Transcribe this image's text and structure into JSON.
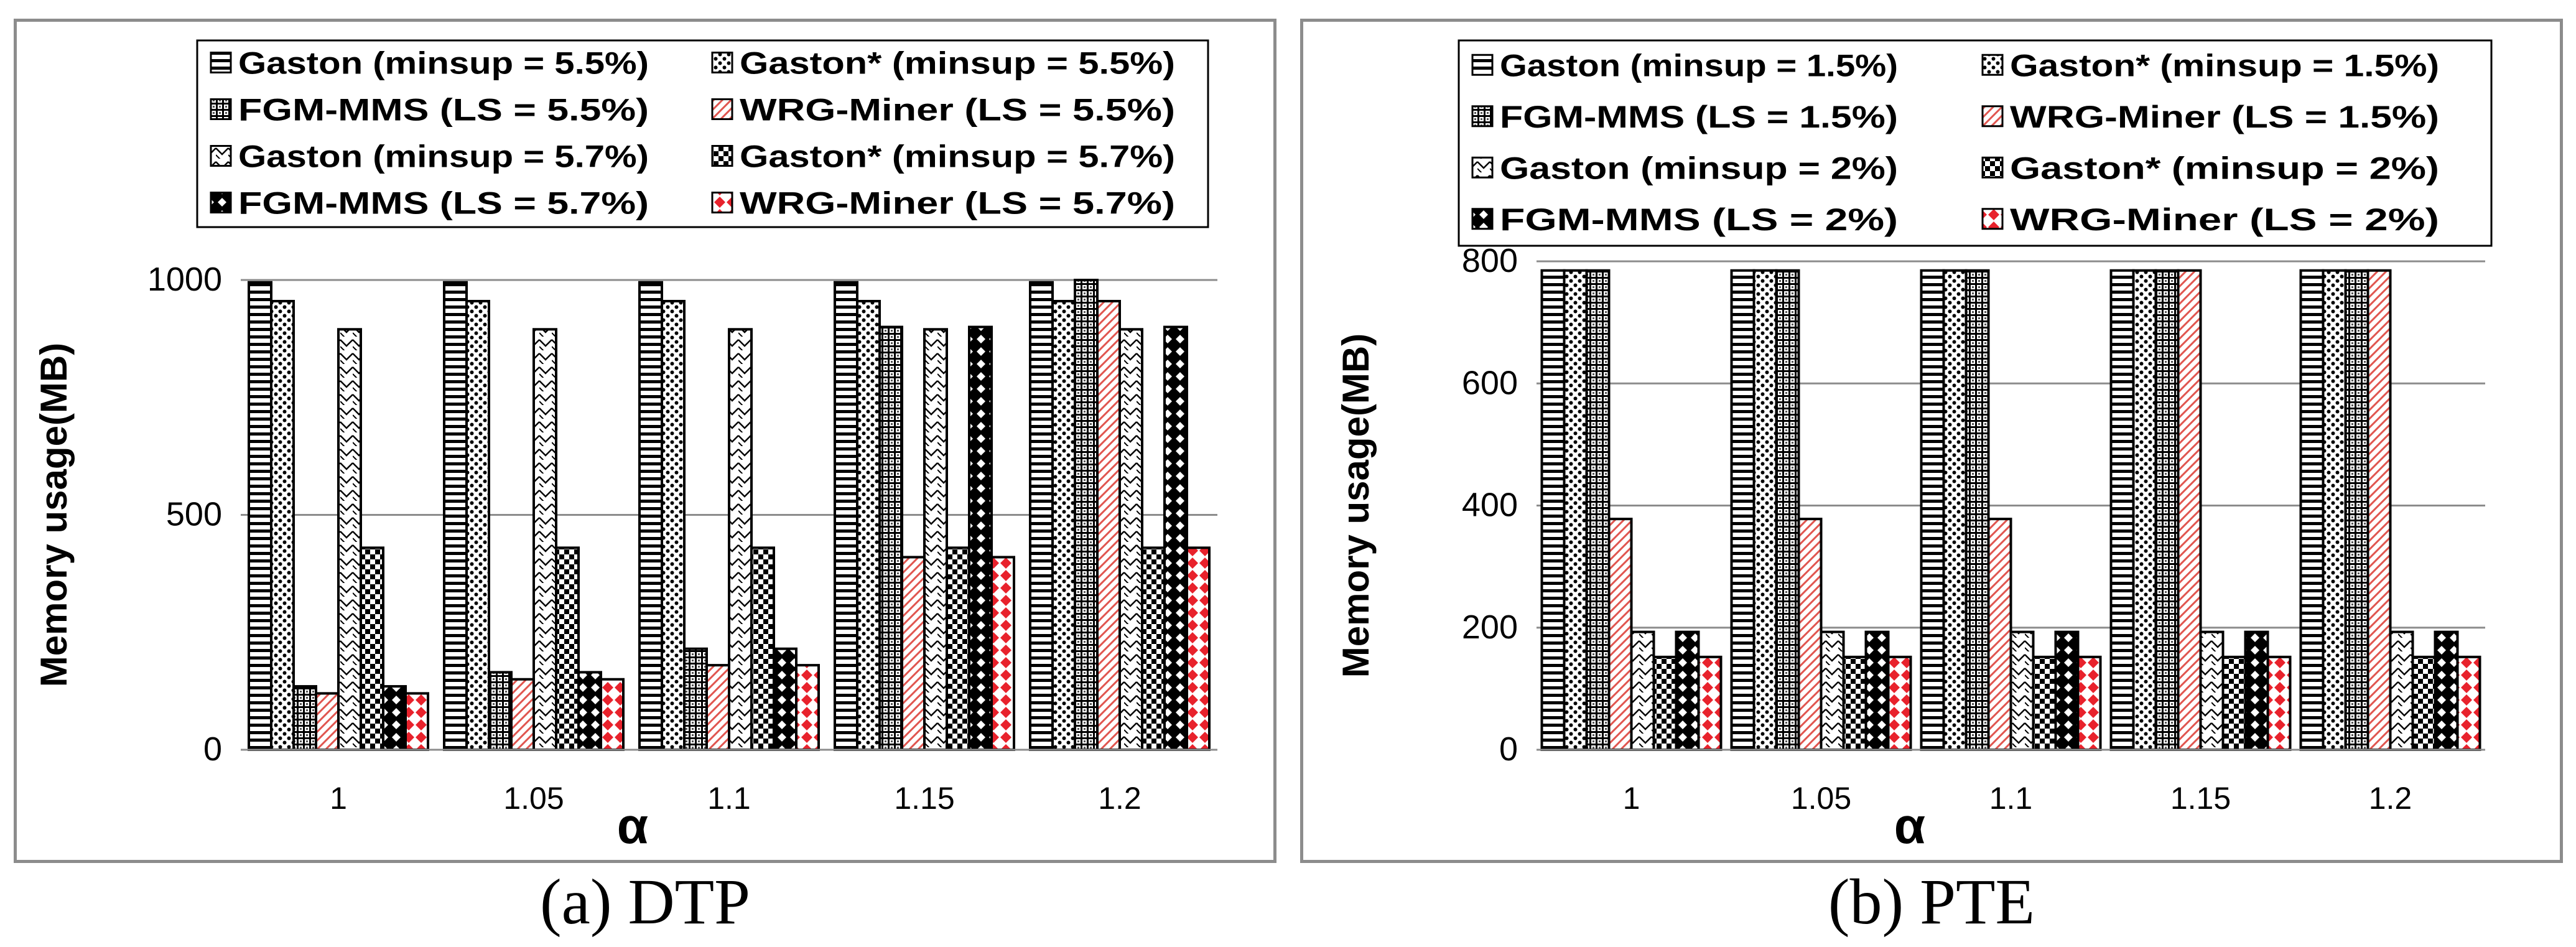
{
  "chart_data": [
    {
      "id": "a",
      "type": "bar",
      "caption": "(a) DTP",
      "xlabel": "α",
      "ylabel": "Memory usage(MB)",
      "ylim": [
        0,
        1000
      ],
      "yticks": [
        "0",
        "500",
        "1000"
      ],
      "grid": true,
      "legend_position": "top",
      "categories": [
        "1",
        "1.05",
        "1.1",
        "1.15",
        "1.2"
      ],
      "series": [
        {
          "name": "Gaston (minsup = 5.5%)",
          "pattern": "hstripe",
          "values": [
            995,
            995,
            995,
            995,
            995
          ]
        },
        {
          "name": "Gaston* (minsup = 5.5%)",
          "pattern": "dots",
          "values": [
            955,
            955,
            955,
            955,
            955
          ]
        },
        {
          "name": "FGM-MMS (LS = 5.5%)",
          "pattern": "grid",
          "values": [
            135,
            165,
            215,
            900,
            1000
          ]
        },
        {
          "name": "WRG-Miner (LS = 5.5%)",
          "pattern": "redhatch",
          "values": [
            120,
            150,
            180,
            410,
            955
          ]
        },
        {
          "name": "Gaston (minsup = 5.7%)",
          "pattern": "zigzag",
          "values": [
            895,
            895,
            895,
            895,
            895
          ]
        },
        {
          "name": "Gaston* (minsup = 5.7%)",
          "pattern": "checker",
          "values": [
            430,
            430,
            430,
            430,
            430
          ]
        },
        {
          "name": "FGM-MMS (LS = 5.7%)",
          "pattern": "diamond",
          "values": [
            135,
            165,
            215,
            900,
            900
          ]
        },
        {
          "name": "WRG-Miner (LS = 5.7%)",
          "pattern": "reddiamond",
          "values": [
            120,
            150,
            180,
            410,
            430
          ]
        }
      ]
    },
    {
      "id": "b",
      "type": "bar",
      "caption": "(b) PTE",
      "xlabel": "α",
      "ylabel": "Memory usage(MB)",
      "ylim": [
        0,
        800
      ],
      "yticks": [
        "0",
        "200",
        "400",
        "600",
        "800"
      ],
      "grid": true,
      "legend_position": "top",
      "categories": [
        "1",
        "1.05",
        "1.1",
        "1.15",
        "1.2"
      ],
      "series": [
        {
          "name": "Gaston (minsup = 1.5%)",
          "pattern": "hstripe",
          "values": [
            785,
            785,
            785,
            785,
            785
          ]
        },
        {
          "name": "Gaston* (minsup = 1.5%)",
          "pattern": "dots",
          "values": [
            785,
            785,
            785,
            785,
            785
          ]
        },
        {
          "name": "FGM-MMS (LS = 1.5%)",
          "pattern": "grid",
          "values": [
            785,
            785,
            785,
            785,
            785
          ]
        },
        {
          "name": "WRG-Miner (LS = 1.5%)",
          "pattern": "redhatch",
          "values": [
            378,
            378,
            378,
            785,
            785
          ]
        },
        {
          "name": "Gaston (minsup = 2%)",
          "pattern": "zigzag",
          "values": [
            193,
            193,
            193,
            193,
            193
          ]
        },
        {
          "name": "Gaston* (minsup = 2%)",
          "pattern": "checker",
          "values": [
            152,
            152,
            152,
            152,
            152
          ]
        },
        {
          "name": "FGM-MMS (LS = 2%)",
          "pattern": "diamond",
          "values": [
            193,
            193,
            193,
            193,
            193
          ]
        },
        {
          "name": "WRG-Miner (LS = 2%)",
          "pattern": "reddiamond",
          "values": [
            152,
            152,
            152,
            152,
            152
          ]
        }
      ]
    }
  ]
}
